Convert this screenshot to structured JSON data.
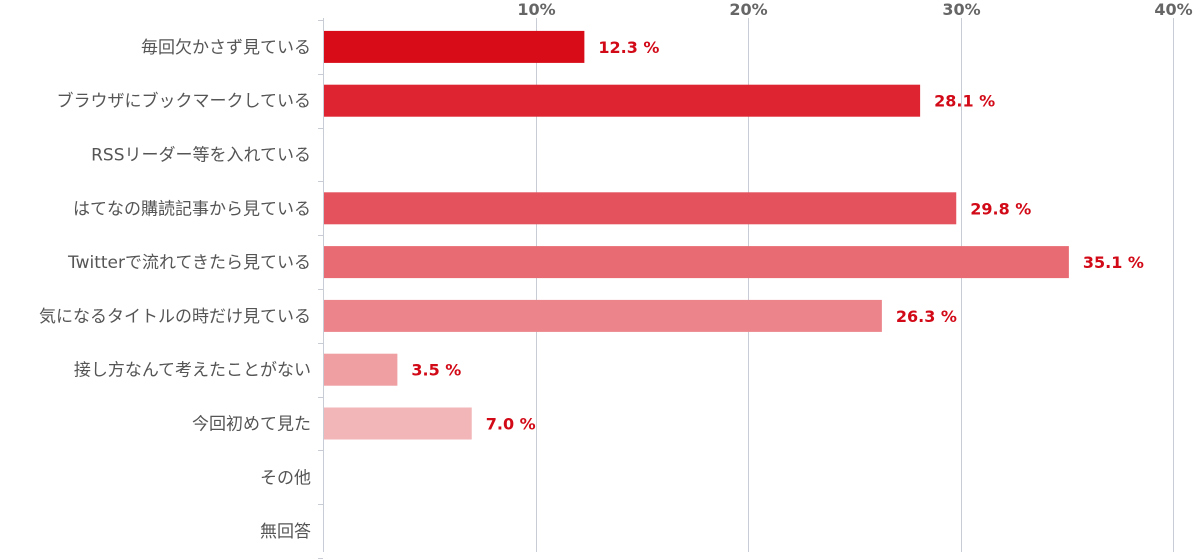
{
  "chart_data": {
    "type": "bar",
    "orientation": "horizontal",
    "categories": [
      "毎回欠かさず見ている",
      "ブラウザにブックマークしている",
      "RSSリーダー等を入れている",
      "はてなの購読記事から見ている",
      "Twitterで流れてきたら見ている",
      "気になるタイトルの時だけ見ている",
      "接し方なんて考えたことがない",
      "今回初めて見た",
      "その他",
      "無回答"
    ],
    "values": [
      12.3,
      28.1,
      0,
      29.8,
      35.1,
      26.3,
      3.5,
      7.0,
      0,
      0
    ],
    "value_labels": [
      "12.3 %",
      "28.1 %",
      "",
      "29.8 %",
      "35.1 %",
      "26.3 %",
      "3.5 %",
      "7.0 %",
      "",
      ""
    ],
    "bar_colors": [
      "#d80c18",
      "#de2431",
      "#e23b47",
      "#e4525d",
      "#e86b73",
      "#eb858b",
      "#ef9ea2",
      "#f2b6b9",
      "#f5cfd1",
      "#f8e5e6"
    ],
    "xticks": [
      10,
      20,
      30,
      40
    ],
    "xtick_labels": [
      "10%",
      "20%",
      "30%",
      "40%"
    ],
    "xlim": [
      0,
      40
    ],
    "grid": true,
    "title": "",
    "xlabel": "",
    "ylabel": ""
  }
}
